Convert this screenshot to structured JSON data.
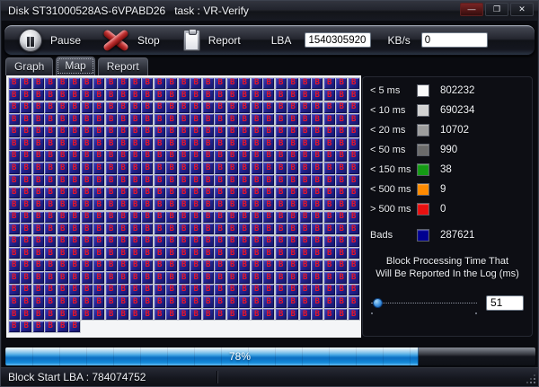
{
  "window": {
    "title": "Disk ST31000528AS-6VPABD26   task : VR-Verify",
    "controls": {
      "minimize": "—",
      "maximize": "❐",
      "close": "✕"
    }
  },
  "toolbar": {
    "pause_label": "Pause",
    "stop_label": "Stop",
    "report_label": "Report",
    "lba_label": "LBA",
    "lba_value": "1540305920",
    "kbs_label": "KB/s",
    "kbs_value": "0"
  },
  "tabs": [
    {
      "label": "Graph",
      "active": false
    },
    {
      "label": "Map",
      "active": true
    },
    {
      "label": "Report",
      "active": false
    }
  ],
  "map": {
    "columns": 29,
    "full_rows": 20,
    "partial_row_cells": 6,
    "block_letter": "B",
    "block_color": "#23238e",
    "block_letter_color": "#e5152a"
  },
  "legend": {
    "rows": [
      {
        "label": "< 5 ms",
        "color": "#fafafa",
        "count": "802232"
      },
      {
        "label": "< 10 ms",
        "color": "#d2d2d2",
        "count": "690234"
      },
      {
        "label": "< 20 ms",
        "color": "#9d9d9d",
        "count": "10702"
      },
      {
        "label": "< 50 ms",
        "color": "#6b6b6b",
        "count": "990"
      },
      {
        "label": "< 150 ms",
        "color": "#149a14",
        "count": "38"
      },
      {
        "label": "< 500 ms",
        "color": "#ff8a00",
        "count": "9"
      },
      {
        "label": "> 500 ms",
        "color": "#e81010",
        "count": "0"
      },
      {
        "label": "Bads",
        "color": "#000090",
        "count": "287621",
        "gap": true
      }
    ]
  },
  "slider": {
    "caption_line1": "Block Processing Time That",
    "caption_line2": "Will Be Reported In the Log (ms)",
    "value": "51"
  },
  "progress": {
    "percent": 78,
    "label": "78%"
  },
  "status": {
    "text": "Block Start LBA : 784074752"
  }
}
